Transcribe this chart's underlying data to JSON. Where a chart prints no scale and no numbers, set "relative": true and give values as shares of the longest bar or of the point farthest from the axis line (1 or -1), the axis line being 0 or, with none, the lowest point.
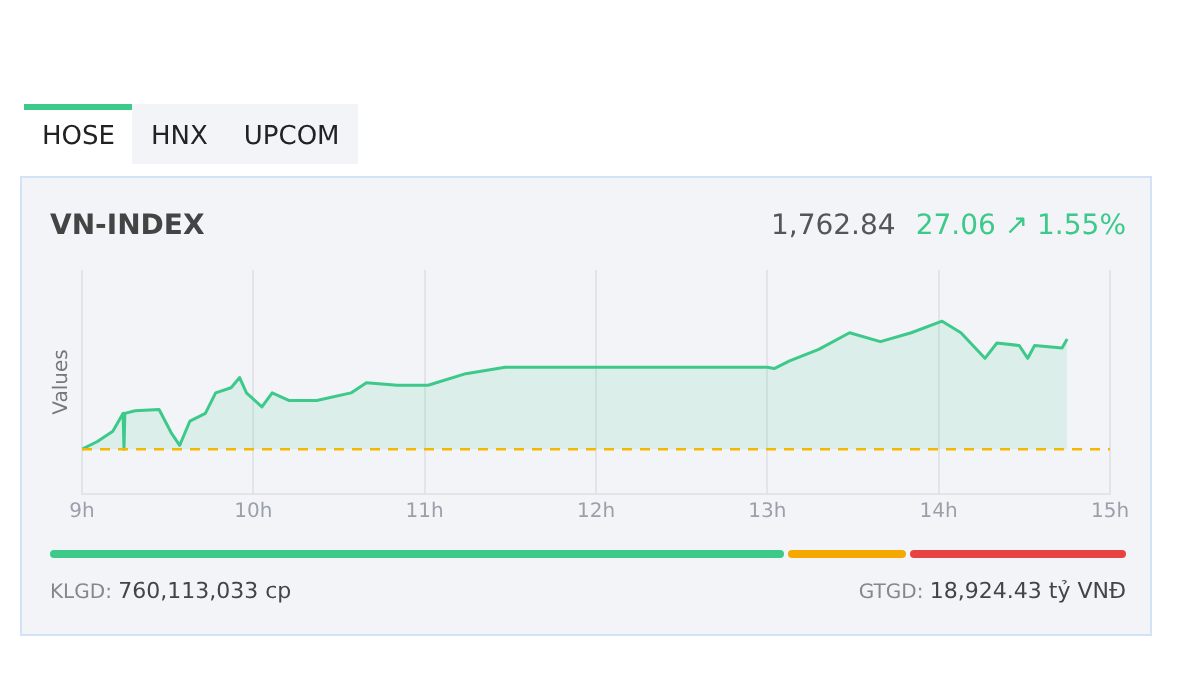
{
  "chart_data": {
    "type": "area",
    "title": "VN-INDEX",
    "ylabel": "Values",
    "relative": true,
    "annotations": [
      "HOSE",
      "HNX",
      "UPCOM",
      "1,762.84",
      "27.06 ↗ 1.55%",
      "KLGD:",
      "760,113,033 cp",
      "GTGD:",
      "18,924.43 tỷ VNĐ"
    ],
    "x": [
      9.0,
      9.09,
      9.18,
      9.24,
      9.245,
      9.25,
      9.31,
      9.45,
      9.52,
      9.57,
      9.63,
      9.72,
      9.78,
      9.87,
      9.92,
      9.96,
      10.05,
      10.11,
      10.21,
      10.37,
      10.57,
      10.66,
      10.84,
      11.02,
      11.24,
      11.47,
      13.0,
      13.04,
      13.13,
      13.3,
      13.48,
      13.66,
      13.84,
      14.02,
      14.13,
      14.27,
      14.34,
      14.47,
      14.52,
      14.56,
      14.72,
      14.75
    ],
    "series": [
      {
        "color": "#3cc98a",
        "values": [
          0,
          0.06,
          0.14,
          0.28,
          0,
          0.28,
          0.3,
          0.31,
          0.13,
          0.03,
          0.22,
          0.28,
          0.44,
          0.48,
          0.56,
          0.44,
          0.33,
          0.44,
          0.38,
          0.38,
          0.44,
          0.52,
          0.5,
          0.5,
          0.59,
          0.64,
          0.64,
          0.63,
          0.69,
          0.78,
          0.91,
          0.84,
          0.91,
          1.0,
          0.91,
          0.71,
          0.83,
          0.81,
          0.71,
          0.81,
          0.79,
          0.86
        ]
      }
    ],
    "xlim": [
      9,
      15
    ],
    "xticks": [
      {
        "value": 9,
        "label": "9h"
      },
      {
        "value": 10,
        "label": "10h"
      },
      {
        "value": 11,
        "label": "11h"
      },
      {
        "value": 12,
        "label": "12h"
      },
      {
        "value": 13,
        "label": "13h"
      },
      {
        "value": 14,
        "label": "14h"
      },
      {
        "value": 15,
        "label": "15h"
      }
    ],
    "ref_lines": [
      {
        "axis": "y",
        "value": 0,
        "color": "#f5b800",
        "line_style": "dashed"
      }
    ],
    "grid": "x",
    "legend": false,
    "marker": "none",
    "line_style": "solid"
  }
}
